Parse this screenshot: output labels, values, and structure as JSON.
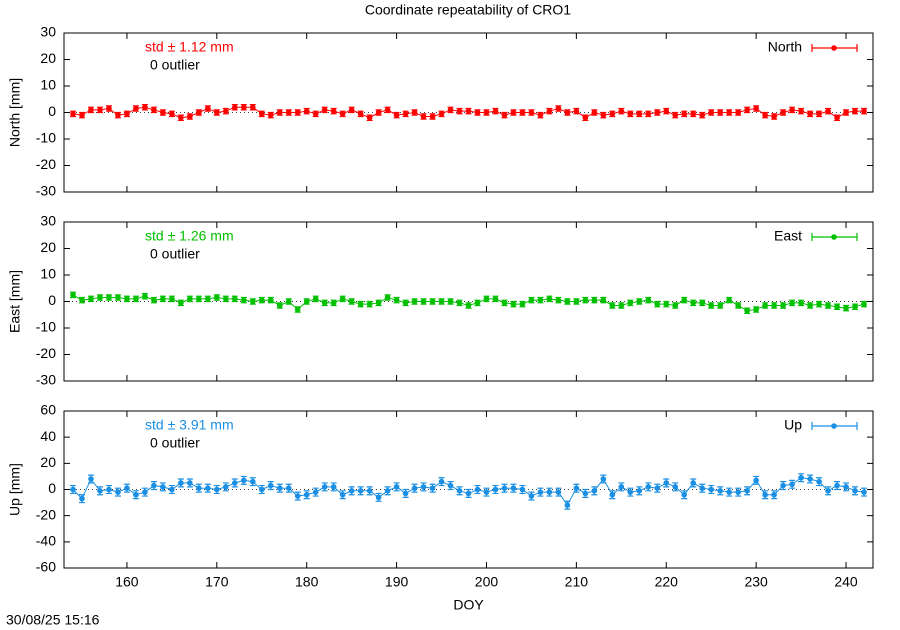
{
  "title": "Coordinate repeatability of CRO1",
  "timestamp": "30/08/25 15:16",
  "chart_data": [
    {
      "type": "line",
      "ylabel": "North [mm]",
      "std_label": "std ± 1.12 mm",
      "outlier_label": "0 outlier",
      "xlim": [
        153,
        243
      ],
      "xticks": [
        160,
        170,
        180,
        190,
        200,
        210,
        220,
        230,
        240
      ],
      "ylim": [
        -30,
        30
      ],
      "yticks": [
        -30,
        -20,
        -10,
        0,
        10,
        20,
        30
      ],
      "x": [
        154,
        155,
        156,
        157,
        158,
        159,
        160,
        161,
        162,
        163,
        164,
        165,
        166,
        167,
        168,
        169,
        170,
        171,
        172,
        173,
        174,
        175,
        176,
        177,
        178,
        179,
        180,
        181,
        182,
        183,
        184,
        185,
        186,
        187,
        188,
        189,
        190,
        191,
        192,
        193,
        194,
        195,
        196,
        197,
        198,
        199,
        200,
        201,
        202,
        203,
        204,
        205,
        206,
        207,
        208,
        209,
        210,
        211,
        212,
        213,
        214,
        215,
        216,
        217,
        218,
        219,
        220,
        221,
        222,
        223,
        224,
        225,
        226,
        227,
        228,
        229,
        230,
        231,
        232,
        233,
        234,
        235,
        236,
        237,
        238,
        239,
        240,
        241,
        242
      ],
      "series": [
        {
          "name": "North",
          "color": "#ff0000",
          "error": 1,
          "values": [
            -0.5,
            -1,
            1,
            1,
            1.5,
            -1,
            -0.5,
            1.5,
            2,
            1,
            0,
            -0.5,
            -2,
            -1.5,
            0,
            1.5,
            0,
            0.5,
            2,
            2,
            2,
            -0.5,
            -1,
            0,
            0,
            0,
            0.5,
            -0.5,
            1,
            0.5,
            -0.5,
            1,
            -0.5,
            -2,
            0,
            1,
            -1,
            -0.5,
            0,
            -1.5,
            -1.5,
            -0.5,
            1,
            0.5,
            0.5,
            0,
            0,
            0.5,
            -1,
            0,
            0,
            0,
            -1,
            0.5,
            1.5,
            0,
            0.5,
            -2,
            0,
            -1,
            -0.5,
            0.5,
            -0.5,
            -0.5,
            -0.5,
            0,
            0.5,
            -1,
            -0.5,
            -0.5,
            -1,
            0,
            0,
            0,
            0,
            1,
            1.5,
            -1,
            -1.5,
            0,
            1,
            0.5,
            -0.5,
            -0.5,
            0.5,
            -2,
            0,
            0.5,
            0.5
          ]
        }
      ]
    },
    {
      "type": "line",
      "ylabel": "East [mm]",
      "std_label": "std ± 1.26 mm",
      "outlier_label": "0 outlier",
      "xlim": [
        153,
        243
      ],
      "xticks": [
        160,
        170,
        180,
        190,
        200,
        210,
        220,
        230,
        240
      ],
      "ylim": [
        -30,
        30
      ],
      "yticks": [
        -30,
        -20,
        -10,
        0,
        10,
        20,
        30
      ],
      "x": [
        154,
        155,
        156,
        157,
        158,
        159,
        160,
        161,
        162,
        163,
        164,
        165,
        166,
        167,
        168,
        169,
        170,
        171,
        172,
        173,
        174,
        175,
        176,
        177,
        178,
        179,
        180,
        181,
        182,
        183,
        184,
        185,
        186,
        187,
        188,
        189,
        190,
        191,
        192,
        193,
        194,
        195,
        196,
        197,
        198,
        199,
        200,
        201,
        202,
        203,
        204,
        205,
        206,
        207,
        208,
        209,
        210,
        211,
        212,
        213,
        214,
        215,
        216,
        217,
        218,
        219,
        220,
        221,
        222,
        223,
        224,
        225,
        226,
        227,
        228,
        229,
        230,
        231,
        232,
        233,
        234,
        235,
        236,
        237,
        238,
        239,
        240,
        241,
        242
      ],
      "series": [
        {
          "name": "East",
          "color": "#00c000",
          "error": 1,
          "values": [
            2.5,
            0.5,
            1,
            1.5,
            1.5,
            1.5,
            1,
            1,
            2,
            0.5,
            1,
            1,
            -0.5,
            1,
            1,
            1,
            1.5,
            1,
            1,
            0.5,
            0,
            0.5,
            0.5,
            -1.5,
            0,
            -3,
            0,
            1,
            -0.5,
            -0.5,
            1,
            0,
            -1,
            -1,
            -0.5,
            1.5,
            0.5,
            -0.5,
            0,
            0,
            0,
            0,
            0,
            -0.5,
            -1.5,
            -0.5,
            1,
            1,
            -0.5,
            -1,
            -1,
            0.5,
            0.5,
            1,
            0.5,
            0,
            0,
            0.5,
            0.5,
            0.5,
            -1.5,
            -1.5,
            -0.5,
            0,
            0.5,
            -1,
            -1,
            -1.5,
            0.5,
            -0.5,
            -0.5,
            -1.5,
            -1.5,
            0.5,
            -1.5,
            -3.5,
            -3,
            -1.5,
            -1.5,
            -1.5,
            -0.5,
            -0.5,
            -1.5,
            -1,
            -1.5,
            -2,
            -2.5,
            -2,
            -1
          ]
        }
      ]
    },
    {
      "type": "line",
      "ylabel": "Up [mm]",
      "xlabel": "DOY",
      "std_label": "std ± 3.91 mm",
      "outlier_label": "0 outlier",
      "xlim": [
        153,
        243
      ],
      "xticks": [
        160,
        170,
        180,
        190,
        200,
        210,
        220,
        230,
        240
      ],
      "ylim": [
        -60,
        60
      ],
      "yticks": [
        -60,
        -40,
        -20,
        0,
        20,
        40,
        60
      ],
      "x": [
        154,
        155,
        156,
        157,
        158,
        159,
        160,
        161,
        162,
        163,
        164,
        165,
        166,
        167,
        168,
        169,
        170,
        171,
        172,
        173,
        174,
        175,
        176,
        177,
        178,
        179,
        180,
        181,
        182,
        183,
        184,
        185,
        186,
        187,
        188,
        189,
        190,
        191,
        192,
        193,
        194,
        195,
        196,
        197,
        198,
        199,
        200,
        201,
        202,
        203,
        204,
        205,
        206,
        207,
        208,
        209,
        210,
        211,
        212,
        213,
        214,
        215,
        216,
        217,
        218,
        219,
        220,
        221,
        222,
        223,
        224,
        225,
        226,
        227,
        228,
        229,
        230,
        231,
        232,
        233,
        234,
        235,
        236,
        237,
        238,
        239,
        240,
        241,
        242
      ],
      "series": [
        {
          "name": "Up",
          "color": "#1a8fe3",
          "error": 3,
          "values": [
            0,
            -7,
            8,
            -1,
            0,
            -2,
            1,
            -4,
            -2,
            3,
            2,
            0,
            5,
            5,
            1,
            1,
            0,
            2,
            5,
            7,
            6,
            0,
            3,
            1,
            1,
            -5,
            -4,
            -2,
            2,
            2,
            -4,
            -1,
            -1,
            -1,
            -6,
            -1,
            2,
            -3,
            1,
            2,
            1,
            6,
            3,
            -1,
            -3,
            0,
            -2,
            0,
            1,
            1,
            0,
            -5,
            -2,
            -2,
            -2,
            -12,
            1,
            -3,
            -1,
            8,
            -4,
            2,
            -2,
            -1,
            2,
            1,
            5,
            2,
            -4,
            5,
            1,
            0,
            -1,
            -2,
            -2,
            -1,
            7,
            -4,
            -4,
            3,
            4,
            9,
            8,
            6,
            -1,
            3,
            2,
            -1,
            -2
          ]
        }
      ]
    }
  ]
}
